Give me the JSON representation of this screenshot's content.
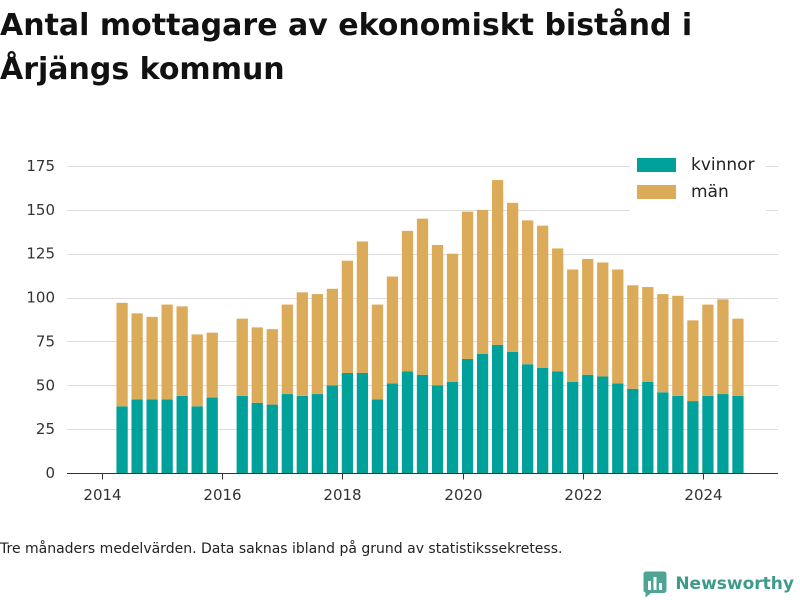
{
  "chart_data": {
    "type": "bar",
    "stacked": true,
    "title": "Antal mottagare av ekonomiskt bistånd i Årjängs kommun",
    "x_type": "date",
    "xlim": [
      "2013-06",
      "2025-04"
    ],
    "ylim": [
      0,
      175
    ],
    "xticks": [
      "2014",
      "2016",
      "2018",
      "2020",
      "2022",
      "2024"
    ],
    "yticks": [
      0,
      25,
      50,
      75,
      100,
      125,
      150,
      175
    ],
    "grid": "horizontal",
    "legend": "top-right",
    "x": [
      "2014-05",
      "2014-08",
      "2014-11",
      "2015-02",
      "2015-05",
      "2015-08",
      "2015-11",
      "2016-05",
      "2016-08",
      "2016-11",
      "2017-02",
      "2017-05",
      "2017-08",
      "2017-11",
      "2018-02",
      "2018-05",
      "2018-08",
      "2018-11",
      "2019-02",
      "2019-05",
      "2019-08",
      "2019-11",
      "2020-02",
      "2020-05",
      "2020-08",
      "2020-11",
      "2021-02",
      "2021-05",
      "2021-08",
      "2021-11",
      "2022-02",
      "2022-05",
      "2022-08",
      "2022-11",
      "2023-02",
      "2023-05",
      "2023-08",
      "2023-11",
      "2024-02",
      "2024-05",
      "2024-08"
    ],
    "series": [
      {
        "name": "kvinnor",
        "color": "#00a19a",
        "values": [
          38,
          42,
          42,
          42,
          44,
          38,
          43,
          44,
          40,
          39,
          45,
          44,
          45,
          50,
          57,
          57,
          42,
          51,
          58,
          56,
          50,
          52,
          65,
          68,
          73,
          69,
          62,
          60,
          58,
          52,
          56,
          55,
          51,
          48,
          52,
          46,
          44,
          41,
          44,
          45,
          44
        ]
      },
      {
        "name": "män",
        "color": "#dbab5a",
        "values": [
          59,
          49,
          47,
          54,
          51,
          41,
          37,
          44,
          43,
          43,
          51,
          59,
          57,
          55,
          64,
          75,
          54,
          61,
          80,
          89,
          80,
          73,
          84,
          82,
          94,
          85,
          82,
          81,
          70,
          64,
          66,
          65,
          65,
          59,
          54,
          56,
          57,
          46,
          52,
          54,
          44
        ]
      }
    ]
  },
  "footer": {
    "note": "Tre månaders medelvärden. Data saknas ibland på grund av statistikssekretess.",
    "brand": "Newsworthy",
    "brand_color": "#3e9a8b",
    "brand_icon": "newsworthy-logo-icon"
  }
}
